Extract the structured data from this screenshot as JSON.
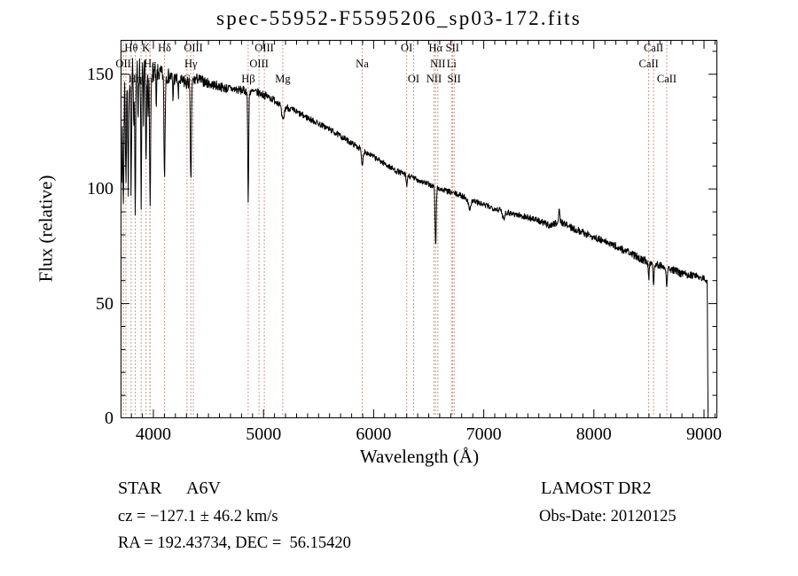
{
  "title": "spec-55952-F5595206_sp03-172.fits",
  "footer": {
    "object_class": "STAR",
    "subclass": "A6V",
    "cz": "cz = −127.1 ± 46.2 km/s",
    "radec": "RA = 192.43734, DEC =  56.15420",
    "survey": "LAMOST DR2",
    "obs_date": "Obs-Date: 20120125"
  },
  "chart_data": {
    "type": "line",
    "title": "spec-55952-F5595206_sp03-172.fits",
    "xlabel": "Wavelength (Å)",
    "ylabel": "Flux (relative)",
    "xlim": [
      3702,
      9121
    ],
    "ylim": [
      0,
      165
    ],
    "x_ticks": [
      4000,
      5000,
      6000,
      7000,
      8000,
      9000
    ],
    "x_tick_labels": [
      "4000",
      "5000",
      "6000",
      "7000",
      "8000",
      "9000"
    ],
    "x_minor_step": 100,
    "y_ticks": [
      0,
      50,
      100,
      150
    ],
    "y_tick_labels": [
      "0",
      "50",
      "100",
      "150"
    ],
    "y_minor_step": 10,
    "grid": false,
    "legend": null,
    "line_color": "#000000",
    "marker_line_color": "#a03020",
    "spectral_lines": [
      {
        "label": "OII",
        "wavelength": 3727,
        "row": 2
      },
      {
        "label": "",
        "wavelength": 3750,
        "row": 0
      },
      {
        "label": "Hθ",
        "wavelength": 3798,
        "row": 1
      },
      {
        "label": "Hη",
        "wavelength": 3835,
        "row": 3
      },
      {
        "label": "",
        "wavelength": 3889,
        "row": 0
      },
      {
        "label": "K",
        "wavelength": 3933,
        "row": 1
      },
      {
        "label": "H",
        "wavelength": 3968,
        "row": 3
      },
      {
        "label": "Hε",
        "wavelength": 3970,
        "row": 2
      },
      {
        "label": "Hδ",
        "wavelength": 4101,
        "row": 1
      },
      {
        "label": "G",
        "wavelength": 4305,
        "row": 3
      },
      {
        "label": "Hγ",
        "wavelength": 4340,
        "row": 2
      },
      {
        "label": "OIII",
        "wavelength": 4363,
        "row": 1
      },
      {
        "label": "Hβ",
        "wavelength": 4861,
        "row": 3
      },
      {
        "label": "OIII",
        "wavelength": 4959,
        "row": 2
      },
      {
        "label": "OIII",
        "wavelength": 5007,
        "row": 1
      },
      {
        "label": "Mg",
        "wavelength": 5175,
        "row": 3
      },
      {
        "label": "Na",
        "wavelength": 5896,
        "row": 2
      },
      {
        "label": "OI",
        "wavelength": 6300,
        "row": 1
      },
      {
        "label": "OI",
        "wavelength": 6363,
        "row": 3
      },
      {
        "label": "NII",
        "wavelength": 6548,
        "row": 3
      },
      {
        "label": "Hα",
        "wavelength": 6563,
        "row": 1
      },
      {
        "label": "NII",
        "wavelength": 6583,
        "row": 2
      },
      {
        "label": "Li",
        "wavelength": 6708,
        "row": 2
      },
      {
        "label": "SII",
        "wavelength": 6716,
        "row": 1
      },
      {
        "label": "SII",
        "wavelength": 6731,
        "row": 3
      },
      {
        "label": "CaII",
        "wavelength": 8498,
        "row": 2
      },
      {
        "label": "CaII",
        "wavelength": 8542,
        "row": 1
      },
      {
        "label": "CaII",
        "wavelength": 8662,
        "row": 3
      }
    ],
    "spectrum": {
      "lambda_start": 3712,
      "lambda_end": 9057,
      "sample_step": 3,
      "continuum": [
        [
          3712,
          112
        ],
        [
          3722,
          138
        ],
        [
          3745,
          149
        ],
        [
          3800,
          150
        ],
        [
          3900,
          152
        ],
        [
          4000,
          151
        ],
        [
          4150,
          149
        ],
        [
          4300,
          146
        ],
        [
          4400,
          148
        ],
        [
          4500,
          146
        ],
        [
          4650,
          144
        ],
        [
          4800,
          143
        ],
        [
          4950,
          142
        ],
        [
          5050,
          140
        ],
        [
          5200,
          136
        ],
        [
          5400,
          131
        ],
        [
          5600,
          126
        ],
        [
          5800,
          120
        ],
        [
          6000,
          114
        ],
        [
          6200,
          108
        ],
        [
          6450,
          103
        ],
        [
          6600,
          100
        ],
        [
          6800,
          97
        ],
        [
          7000,
          93
        ],
        [
          7200,
          90
        ],
        [
          7450,
          87
        ],
        [
          7600,
          84
        ],
        [
          7690,
          86
        ],
        [
          7800,
          83
        ],
        [
          8000,
          79
        ],
        [
          8200,
          75
        ],
        [
          8450,
          69
        ],
        [
          8650,
          66
        ],
        [
          8800,
          63
        ],
        [
          8950,
          62
        ],
        [
          9000,
          61
        ],
        [
          9030,
          59
        ],
        [
          9036,
          0
        ],
        [
          9057,
          0
        ]
      ],
      "absorption": [
        [
          3727,
          45,
          5
        ],
        [
          3750,
          48,
          4
        ],
        [
          3771,
          50,
          4
        ],
        [
          3798,
          52,
          4
        ],
        [
          3820,
          25,
          3
        ],
        [
          3835,
          55,
          4
        ],
        [
          3860,
          22,
          3
        ],
        [
          3889,
          55,
          4
        ],
        [
          3910,
          20,
          3
        ],
        [
          3933,
          45,
          4
        ],
        [
          3952,
          22,
          3
        ],
        [
          3970,
          58,
          5
        ],
        [
          4026,
          18,
          3
        ],
        [
          4101,
          45,
          5
        ],
        [
          4178,
          10,
          3
        ],
        [
          4227,
          8,
          3
        ],
        [
          4340,
          44,
          5
        ],
        [
          4861,
          50,
          4
        ],
        [
          5175,
          7,
          12
        ],
        [
          5896,
          7,
          7
        ],
        [
          6300,
          5,
          5
        ],
        [
          6563,
          26,
          5
        ],
        [
          6870,
          4,
          12
        ],
        [
          7180,
          3,
          10
        ],
        [
          8498,
          7,
          5
        ],
        [
          8542,
          8,
          5
        ],
        [
          8662,
          7,
          5
        ]
      ],
      "emission": [
        [
          7685,
          6,
          4
        ]
      ],
      "noise": [
        [
          3712,
          9
        ],
        [
          3800,
          8
        ],
        [
          3900,
          6
        ],
        [
          4000,
          4
        ],
        [
          4200,
          3
        ],
        [
          4500,
          2.2
        ],
        [
          4900,
          1.8
        ],
        [
          5500,
          1.3
        ],
        [
          6500,
          1.2
        ],
        [
          7500,
          1.4
        ],
        [
          8300,
          1.7
        ],
        [
          8900,
          1.6
        ],
        [
          9030,
          1.2
        ],
        [
          9040,
          0.3
        ],
        [
          9057,
          0.2
        ]
      ]
    }
  }
}
